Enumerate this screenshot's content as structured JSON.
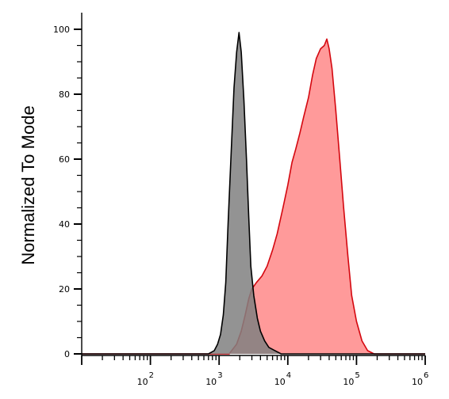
{
  "chart_data": {
    "type": "area",
    "title": "",
    "xlabel": "",
    "ylabel": "Normalized To Mode",
    "x_scale": "log",
    "xlim": [
      10,
      1000000
    ],
    "ylim": [
      0,
      100
    ],
    "x_tick_labels": [
      {
        "base": "10",
        "exp": "2",
        "value": 100
      },
      {
        "base": "10",
        "exp": "3",
        "value": 1000
      },
      {
        "base": "10",
        "exp": "4",
        "value": 10000
      },
      {
        "base": "10",
        "exp": "5",
        "value": 100000
      },
      {
        "base": "10",
        "exp": "6",
        "value": 1000000
      }
    ],
    "y_ticks": [
      0,
      20,
      40,
      60,
      80,
      100
    ],
    "y_tick_labels": [
      "0",
      "20",
      "40",
      "60",
      "80",
      "100"
    ],
    "grid": false,
    "legend": "none",
    "series": [
      {
        "color": "#ff9a9a",
        "stroke": "#d4070f",
        "points": [
          [
            10,
            0
          ],
          [
            1400,
            0
          ],
          [
            1800,
            3
          ],
          [
            2100,
            7
          ],
          [
            2400,
            12
          ],
          [
            2700,
            17
          ],
          [
            3000,
            20
          ],
          [
            3500,
            22
          ],
          [
            4200,
            24
          ],
          [
            5000,
            27
          ],
          [
            6000,
            32
          ],
          [
            7000,
            37
          ],
          [
            8500,
            45
          ],
          [
            10000,
            52
          ],
          [
            11500,
            59
          ],
          [
            13000,
            63
          ],
          [
            15000,
            68
          ],
          [
            17000,
            73
          ],
          [
            20000,
            79
          ],
          [
            23000,
            86
          ],
          [
            26000,
            91
          ],
          [
            30000,
            94
          ],
          [
            34000,
            95
          ],
          [
            37000,
            97
          ],
          [
            40000,
            94
          ],
          [
            44000,
            88
          ],
          [
            50000,
            75
          ],
          [
            57000,
            60
          ],
          [
            65000,
            45
          ],
          [
            75000,
            30
          ],
          [
            85000,
            18
          ],
          [
            100000,
            10
          ],
          [
            120000,
            4
          ],
          [
            145000,
            1
          ],
          [
            180000,
            0
          ],
          [
            1000000,
            0
          ]
        ]
      },
      {
        "color": "#808080",
        "stroke": "#000000",
        "points": [
          [
            10,
            0
          ],
          [
            700,
            0
          ],
          [
            850,
            1
          ],
          [
            950,
            3
          ],
          [
            1050,
            6
          ],
          [
            1150,
            12
          ],
          [
            1250,
            22
          ],
          [
            1350,
            40
          ],
          [
            1500,
            62
          ],
          [
            1650,
            82
          ],
          [
            1800,
            93
          ],
          [
            1950,
            99
          ],
          [
            2100,
            93
          ],
          [
            2300,
            78
          ],
          [
            2500,
            60
          ],
          [
            2700,
            42
          ],
          [
            2900,
            27
          ],
          [
            3200,
            18
          ],
          [
            3600,
            11
          ],
          [
            4000,
            7
          ],
          [
            4600,
            4
          ],
          [
            5300,
            2
          ],
          [
            6500,
            1
          ],
          [
            8000,
            0
          ],
          [
            1000000,
            0
          ]
        ]
      }
    ]
  }
}
